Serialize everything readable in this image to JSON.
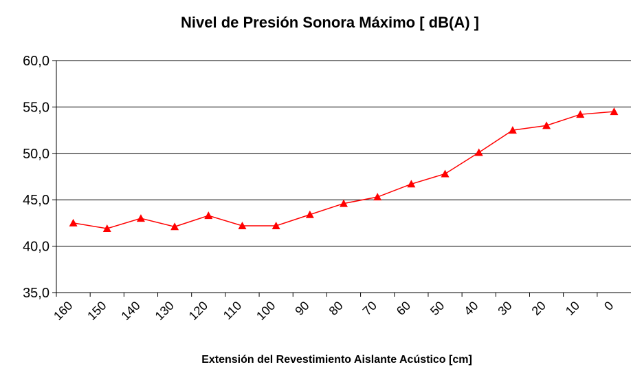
{
  "chart_data": {
    "type": "line",
    "title": "Nivel de Presión Sonora Máximo [ dB(A) ]",
    "x_label": "Extensión del Revestimiento Aislante Acústico [cm]",
    "categories": [
      "160",
      "150",
      "140",
      "130",
      "120",
      "110",
      "100",
      "90",
      "80",
      "70",
      "60",
      "50",
      "40",
      "30",
      "20",
      "10",
      "0"
    ],
    "series": [
      {
        "name": "Nivel de Presión Sonora Máximo",
        "color": "#ff0000",
        "values": [
          42.5,
          41.9,
          43.0,
          42.1,
          43.3,
          42.2,
          42.2,
          43.4,
          44.6,
          45.3,
          46.7,
          47.8,
          50.1,
          52.5,
          53.0,
          54.2,
          54.5
        ]
      }
    ],
    "ylim": [
      35,
      60
    ],
    "yticks": [
      {
        "value": 35,
        "label": "35,0"
      },
      {
        "value": 40,
        "label": "40,0"
      },
      {
        "value": 45,
        "label": "45,0"
      },
      {
        "value": 50,
        "label": "50,0"
      },
      {
        "value": 55,
        "label": "55,0"
      },
      {
        "value": 60,
        "label": "60,0"
      }
    ],
    "grid": true
  }
}
